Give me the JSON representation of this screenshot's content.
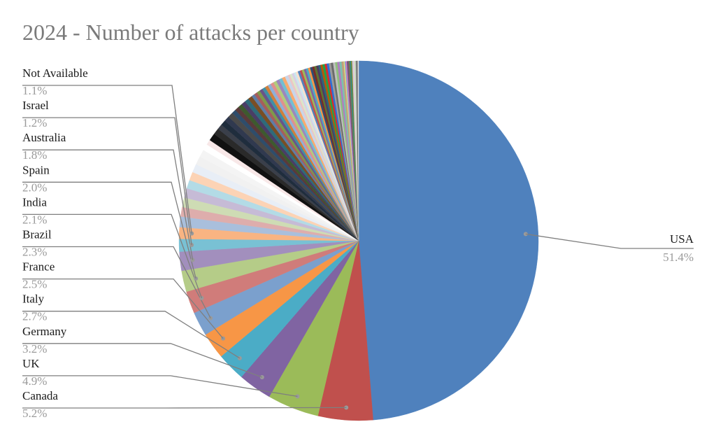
{
  "chart_data": {
    "type": "pie",
    "title": "2024 - Number of attacks per country",
    "labeled_slices": [
      {
        "name": "USA",
        "percent": 51.4,
        "label": "51.4%",
        "color": "#4f81bd"
      },
      {
        "name": "Canada",
        "percent": 5.2,
        "label": "5.2%",
        "color": "#c0504d"
      },
      {
        "name": "UK",
        "percent": 4.9,
        "label": "4.9%",
        "color": "#9bbb59"
      },
      {
        "name": "Germany",
        "percent": 3.2,
        "label": "3.2%",
        "color": "#8064a2"
      },
      {
        "name": "Italy",
        "percent": 2.7,
        "label": "2.7%",
        "color": "#4bacc6"
      },
      {
        "name": "France",
        "percent": 2.5,
        "label": "2.5%",
        "color": "#f79646"
      },
      {
        "name": "Brazil",
        "percent": 2.3,
        "label": "2.3%",
        "color": "#7ba0cd"
      },
      {
        "name": "India",
        "percent": 2.1,
        "label": "2.1%",
        "color": "#d07c7a"
      },
      {
        "name": "Spain",
        "percent": 2.0,
        "label": "2.0%",
        "color": "#b5cc88"
      },
      {
        "name": "Australia",
        "percent": 1.8,
        "label": "1.8%",
        "color": "#a28fbd"
      },
      {
        "name": "Israel",
        "percent": 1.2,
        "label": "1.2%",
        "color": "#79c1d4"
      },
      {
        "name": "Not Available",
        "percent": 1.1,
        "label": "1.1%",
        "color": "#f9b482"
      }
    ],
    "unlabeled_slices_approx": [
      {
        "percent": 1.0,
        "color": "#a9bfdc"
      },
      {
        "percent": 0.9,
        "color": "#deadac"
      },
      {
        "percent": 0.9,
        "color": "#cedcb4"
      },
      {
        "percent": 0.9,
        "color": "#c6bbd6"
      },
      {
        "percent": 0.8,
        "color": "#b3dbe6"
      },
      {
        "percent": 0.8,
        "color": "#fcd3b5"
      },
      {
        "percent": 0.8,
        "color": "#e8eef6"
      },
      {
        "percent": 0.8,
        "color": "#f1f1f1"
      },
      {
        "percent": 0.7,
        "color": "#f4f4f4"
      },
      {
        "percent": 0.6,
        "color": "#ffffff"
      },
      {
        "percent": 0.5,
        "color": "#f8e8e8"
      },
      {
        "percent": 0.7,
        "color": "#111111"
      },
      {
        "percent": 0.6,
        "color": "#2a2a2a"
      },
      {
        "percent": 0.5,
        "color": "#3a3f4a"
      },
      {
        "percent": 0.5,
        "color": "#1f2d3d"
      },
      {
        "percent": 0.5,
        "color": "#30394f"
      },
      {
        "percent": 0.5,
        "color": "#4a4a4a"
      },
      {
        "percent": 0.4,
        "color": "#2e4d6b"
      },
      {
        "percent": 0.4,
        "color": "#5a3a3a"
      },
      {
        "percent": 0.4,
        "color": "#3d5a2e"
      },
      {
        "percent": 0.4,
        "color": "#4a3d66"
      },
      {
        "percent": 0.4,
        "color": "#2e6b7a"
      },
      {
        "percent": 0.4,
        "color": "#7a4e24"
      },
      {
        "percent": 0.3,
        "color": "#5e7ea6"
      },
      {
        "percent": 0.3,
        "color": "#a65e5c"
      },
      {
        "percent": 0.3,
        "color": "#7e9a4a"
      },
      {
        "percent": 0.3,
        "color": "#6a5488"
      },
      {
        "percent": 0.3,
        "color": "#3f90a6"
      },
      {
        "percent": 0.3,
        "color": "#d07f3c"
      },
      {
        "percent": 0.3,
        "color": "#8fb0d8"
      },
      {
        "percent": 0.3,
        "color": "#e0908e"
      },
      {
        "percent": 0.3,
        "color": "#b2cc7c"
      },
      {
        "percent": 0.3,
        "color": "#9d87bc"
      },
      {
        "percent": 0.3,
        "color": "#72bfd4"
      },
      {
        "percent": 0.3,
        "color": "#f9aa6e"
      },
      {
        "percent": 0.3,
        "color": "#c8d6ea"
      },
      {
        "percent": 0.2,
        "color": "#ecc6c5"
      },
      {
        "percent": 0.2,
        "color": "#dbe7c8"
      },
      {
        "percent": 0.2,
        "color": "#d8cfe5"
      },
      {
        "percent": 0.2,
        "color": "#cbe8f0"
      },
      {
        "percent": 0.2,
        "color": "#fde0cb"
      },
      {
        "percent": 0.2,
        "color": "#4f81bd"
      },
      {
        "percent": 0.2,
        "color": "#c0504d"
      },
      {
        "percent": 0.2,
        "color": "#9bbb59"
      },
      {
        "percent": 0.2,
        "color": "#8064a2"
      },
      {
        "percent": 0.2,
        "color": "#4bacc6"
      },
      {
        "percent": 0.2,
        "color": "#f79646"
      },
      {
        "percent": 0.2,
        "color": "#2c4d75"
      },
      {
        "percent": 0.2,
        "color": "#772c2a"
      },
      {
        "percent": 0.2,
        "color": "#5f7530"
      },
      {
        "percent": 0.2,
        "color": "#4d3b62"
      },
      {
        "percent": 0.2,
        "color": "#276a7c"
      },
      {
        "percent": 0.2,
        "color": "#b65708"
      },
      {
        "percent": 0.2,
        "color": "#1aa64a"
      },
      {
        "percent": 0.2,
        "color": "#d92b2b"
      },
      {
        "percent": 0.2,
        "color": "#2b6fd9"
      },
      {
        "percent": 0.2,
        "color": "#9b9b9b"
      },
      {
        "percent": 0.2,
        "color": "#6b6b6b"
      },
      {
        "percent": 0.2,
        "color": "#bfbfbf"
      },
      {
        "percent": 0.2,
        "color": "#8ec07c"
      },
      {
        "percent": 0.2,
        "color": "#b07cc0"
      },
      {
        "percent": 0.2,
        "color": "#7cc0b0"
      },
      {
        "percent": 0.2,
        "color": "#c0a07c"
      },
      {
        "percent": 0.1,
        "color": "#e3e37c"
      },
      {
        "percent": 0.1,
        "color": "#7c9ce3"
      },
      {
        "percent": 0.1,
        "color": "#e37cb0"
      },
      {
        "percent": 0.1,
        "color": "#5a5a8a"
      },
      {
        "percent": 0.1,
        "color": "#8a5a5a"
      },
      {
        "percent": 0.1,
        "color": "#5a8a5a"
      },
      {
        "percent": 0.1,
        "color": "#2a8a8a"
      },
      {
        "percent": 0.1,
        "color": "#8a8a2a"
      },
      {
        "percent": 0.1,
        "color": "#c9c9e8"
      },
      {
        "percent": 0.1,
        "color": "#e8c9c9"
      },
      {
        "percent": 0.1,
        "color": "#c9e8c9"
      },
      {
        "percent": 0.1,
        "color": "#aaaaaa"
      },
      {
        "percent": 0.1,
        "color": "#555555"
      },
      {
        "percent": 0.1,
        "color": "#dddddd"
      }
    ],
    "legend": "none",
    "data_labels": "outside with leader lines"
  }
}
